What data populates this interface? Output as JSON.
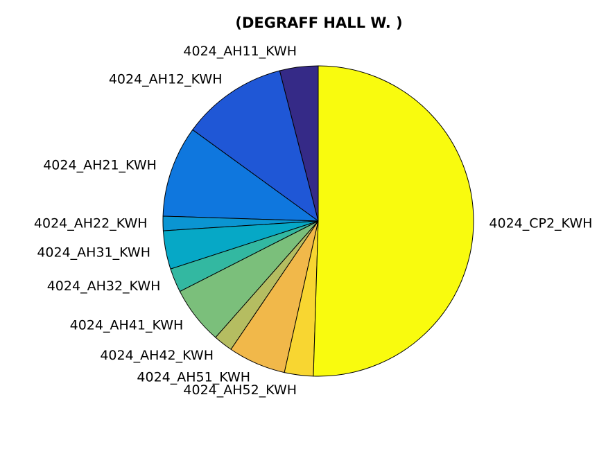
{
  "chart_data": {
    "type": "pie",
    "title": "(DEGRAFF HALL W. )",
    "slices": [
      {
        "label": "4024_AH11_KWH",
        "value": 4.0,
        "color": "#352a87"
      },
      {
        "label": "4024_AH12_KWH",
        "value": 11.0,
        "color": "#1f57d6"
      },
      {
        "label": "4024_AH21_KWH",
        "value": 9.5,
        "color": "#0f77de"
      },
      {
        "label": "4024_AH22_KWH",
        "value": 1.5,
        "color": "#0b95d2"
      },
      {
        "label": "4024_AH31_KWH",
        "value": 4.0,
        "color": "#06a8c6"
      },
      {
        "label": "4024_AH32_KWH",
        "value": 2.5,
        "color": "#33b8a1"
      },
      {
        "label": "4024_AH41_KWH",
        "value": 6.0,
        "color": "#7bbf7b"
      },
      {
        "label": "4024_AH42_KWH",
        "value": 2.0,
        "color": "#b5bd61"
      },
      {
        "label": "4024_AH51_KWH",
        "value": 6.0,
        "color": "#f1b84a"
      },
      {
        "label": "4024_AH52_KWH",
        "value": 3.0,
        "color": "#f8d631"
      },
      {
        "label": "4024_CP2_KWH",
        "value": 50.5,
        "color": "#f9fb0e"
      }
    ]
  }
}
